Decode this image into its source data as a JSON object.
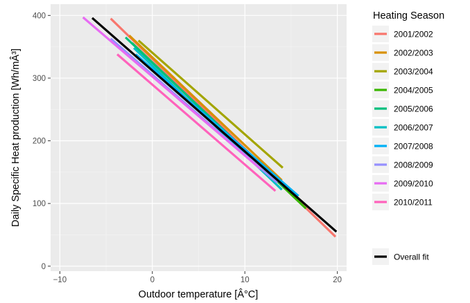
{
  "chart_data": {
    "type": "line",
    "xlabel": "Outdoor temperature [Â°C]",
    "ylabel": "Daily Specific Heat production [Wh/mÂ³]",
    "xlim": [
      -11.0,
      21.0
    ],
    "ylim": [
      -8,
      418
    ],
    "x_ticks": [
      -10,
      0,
      10,
      20
    ],
    "y_ticks": [
      0,
      100,
      200,
      300,
      400
    ],
    "grid": true,
    "legend_title": "Heating Season",
    "legend_position": "right",
    "series": [
      {
        "name": "2001/2002",
        "color": "#F8766D",
        "points": [
          [
            -4.5,
            395
          ],
          [
            19.8,
            47
          ]
        ]
      },
      {
        "name": "2002/2003",
        "color": "#D89000",
        "points": [
          [
            -2.5,
            368
          ],
          [
            14.0,
            137
          ]
        ]
      },
      {
        "name": "2003/2004",
        "color": "#A3A500",
        "points": [
          [
            -1.5,
            360
          ],
          [
            14.1,
            157
          ]
        ]
      },
      {
        "name": "2004/2005",
        "color": "#39B600",
        "points": [
          [
            -2.2,
            356
          ],
          [
            16.6,
            92
          ]
        ]
      },
      {
        "name": "2005/2006",
        "color": "#00BF7D",
        "points": [
          [
            -2.9,
            365
          ],
          [
            14.2,
            127
          ]
        ]
      },
      {
        "name": "2006/2007",
        "color": "#00BFC4",
        "points": [
          [
            -2.0,
            348
          ],
          [
            14.0,
            122
          ]
        ]
      },
      {
        "name": "2007/2008",
        "color": "#00B0F6",
        "points": [
          [
            -1.8,
            338
          ],
          [
            15.8,
            112
          ]
        ]
      },
      {
        "name": "2008/2009",
        "color": "#9590FF",
        "points": [
          [
            -4.5,
            363
          ],
          [
            13.5,
            133
          ]
        ]
      },
      {
        "name": "2009/2010",
        "color": "#E76BF3",
        "points": [
          [
            -7.5,
            397
          ],
          [
            11.7,
            155
          ]
        ]
      },
      {
        "name": "2010/2011",
        "color": "#FF62BC",
        "points": [
          [
            -3.8,
            338
          ],
          [
            13.3,
            120
          ]
        ]
      }
    ],
    "overall_fit": {
      "name": "Overall fit",
      "color": "#000000",
      "points": [
        [
          -6.5,
          396
        ],
        [
          19.9,
          55
        ]
      ]
    }
  }
}
